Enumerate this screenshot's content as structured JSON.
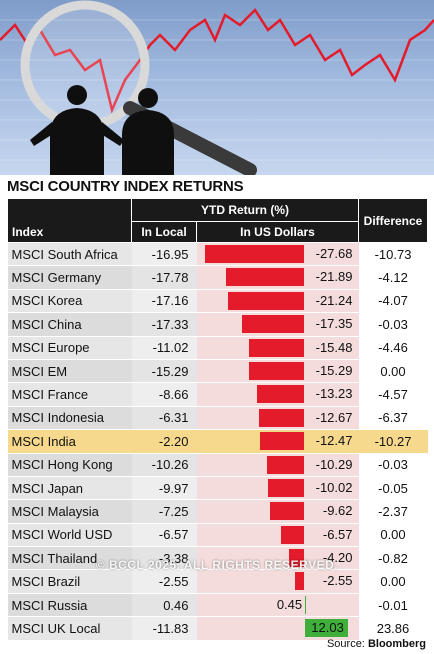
{
  "chart_data": {
    "type": "table",
    "title": "MSCI COUNTRY INDEX RETURNS",
    "headers": {
      "index": "Index",
      "group": "YTD Return (%)",
      "local": "In Local",
      "usd": "In US Dollars",
      "difference": "Difference"
    },
    "rows": [
      {
        "index": "MSCI South Africa",
        "local": "-16.95",
        "usd": "-27.68",
        "difference": "-10.73",
        "usd_value": -27.68
      },
      {
        "index": "MSCI Germany",
        "local": "-17.78",
        "usd": "-21.89",
        "difference": "-4.12",
        "usd_value": -21.89
      },
      {
        "index": "MSCI Korea",
        "local": "-17.16",
        "usd": "-21.24",
        "difference": "-4.07",
        "usd_value": -21.24
      },
      {
        "index": "MSCI China",
        "local": "-17.33",
        "usd": "-17.35",
        "difference": "-0.03",
        "usd_value": -17.35
      },
      {
        "index": "MSCI Europe",
        "local": "-11.02",
        "usd": "-15.48",
        "difference": "-4.46",
        "usd_value": -15.48
      },
      {
        "index": "MSCI EM",
        "local": "-15.29",
        "usd": "-15.29",
        "difference": "0.00",
        "usd_value": -15.29
      },
      {
        "index": "MSCI France",
        "local": "-8.66",
        "usd": "-13.23",
        "difference": "-4.57",
        "usd_value": -13.23
      },
      {
        "index": "MSCI Indonesia",
        "local": "-6.31",
        "usd": "-12.67",
        "difference": "-6.37",
        "usd_value": -12.67
      },
      {
        "index": "MSCI India",
        "local": "-2.20",
        "usd": "-12.47",
        "difference": "-10.27",
        "usd_value": -12.47,
        "highlight": true
      },
      {
        "index": "MSCI Hong Kong",
        "local": "-10.26",
        "usd": "-10.29",
        "difference": "-0.03",
        "usd_value": -10.29
      },
      {
        "index": "MSCI Japan",
        "local": "-9.97",
        "usd": "-10.02",
        "difference": "-0.05",
        "usd_value": -10.02
      },
      {
        "index": "MSCI Malaysia",
        "local": "-7.25",
        "usd": "-9.62",
        "difference": "-2.37",
        "usd_value": -9.62
      },
      {
        "index": "MSCI World USD",
        "local": "-6.57",
        "usd": "-6.57",
        "difference": "0.00",
        "usd_value": -6.57
      },
      {
        "index": "MSCI Thailand",
        "local": "-3.38",
        "usd": "-4.20",
        "difference": "-0.82",
        "usd_value": -4.2
      },
      {
        "index": "MSCI Brazil",
        "local": "-2.55",
        "usd": "-2.55",
        "difference": "0.00",
        "usd_value": -2.55
      },
      {
        "index": "MSCI Russia",
        "local": "0.46",
        "usd": "0.45",
        "difference": "-0.01",
        "usd_value": 0.45
      },
      {
        "index": "MSCI UK Local",
        "local": "-11.83",
        "usd": "12.03",
        "difference": "23.86",
        "usd_value": 12.03
      }
    ],
    "bar_axis": {
      "min": -30,
      "max": 15
    },
    "colors": {
      "negative": "#e31b2b",
      "positive": "#3fae3a",
      "highlight": "#f7d98e",
      "header": "#1a1a1a"
    }
  },
  "watermark": "© BCCL 2025. ALL RIGHTS RESERVED.",
  "source": {
    "label": "Source:",
    "name": "Bloomberg"
  }
}
